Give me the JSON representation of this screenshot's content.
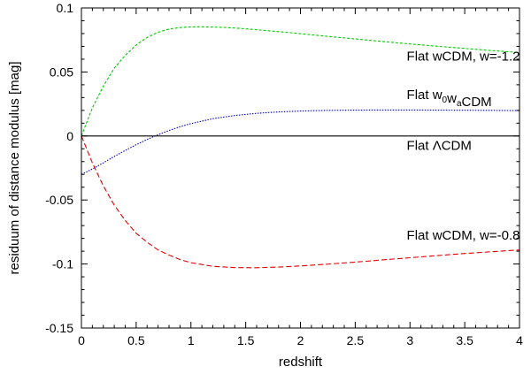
{
  "chart_data": {
    "type": "line",
    "title": "",
    "xlabel": "redshift",
    "ylabel": "residuum of distance modulus [mag]",
    "xlim": [
      0,
      4
    ],
    "ylim": [
      -0.15,
      0.1
    ],
    "xticks": [
      0,
      0.5,
      1,
      1.5,
      2,
      2.5,
      3,
      3.5,
      4
    ],
    "xtick_labels": [
      "0",
      "0.5",
      "1",
      "1.5",
      "2",
      "2.5",
      "3",
      "3.5",
      "4"
    ],
    "yticks": [
      -0.15,
      -0.1,
      -0.05,
      0,
      0.05,
      0.1
    ],
    "ytick_labels": [
      "-0.15",
      "-0.1",
      "-0.05",
      "0",
      "0.05",
      "0.1"
    ],
    "grid": false,
    "series": [
      {
        "name": "Flat wCDM, w=-1.2",
        "color": "#00cc00",
        "style": "short-dash",
        "x": [
          0,
          0.1,
          0.2,
          0.3,
          0.4,
          0.5,
          0.6,
          0.7,
          0.8,
          0.9,
          1.0,
          1.1,
          1.2,
          1.3,
          1.4,
          1.5,
          1.75,
          2.0,
          2.25,
          2.5,
          2.75,
          3.0,
          3.25,
          3.5,
          3.75,
          4.0
        ],
        "values": [
          0.0,
          0.022,
          0.039,
          0.053,
          0.063,
          0.071,
          0.077,
          0.081,
          0.0835,
          0.0847,
          0.0852,
          0.0853,
          0.0851,
          0.0848,
          0.0843,
          0.0837,
          0.0819,
          0.0799,
          0.0778,
          0.0758,
          0.0738,
          0.0719,
          0.0701,
          0.0684,
          0.0667,
          0.0652
        ]
      },
      {
        "name": "Flat w0waCDM",
        "color": "#0000cc",
        "style": "dotted",
        "x": [
          0,
          0.1,
          0.2,
          0.3,
          0.4,
          0.5,
          0.6,
          0.7,
          0.8,
          0.9,
          1.0,
          1.2,
          1.4,
          1.6,
          1.8,
          2.0,
          2.25,
          2.5,
          2.75,
          3.0,
          3.25,
          3.5,
          3.75,
          4.0
        ],
        "values": [
          -0.03,
          -0.0258,
          -0.021,
          -0.016,
          -0.0113,
          -0.0068,
          -0.0027,
          0.001,
          0.0043,
          0.0072,
          0.0097,
          0.0135,
          0.016,
          0.0177,
          0.0188,
          0.0195,
          0.02,
          0.0202,
          0.0203,
          0.0203,
          0.0202,
          0.0201,
          0.02,
          0.0198
        ]
      },
      {
        "name": "Flat ΛCDM",
        "color": "#000000",
        "style": "solid",
        "x": [
          0,
          4
        ],
        "values": [
          0,
          0
        ]
      },
      {
        "name": "Flat wCDM, w=-0.8",
        "color": "#e00000",
        "style": "long-dash",
        "x": [
          0,
          0.1,
          0.2,
          0.3,
          0.4,
          0.5,
          0.6,
          0.7,
          0.8,
          0.9,
          1.0,
          1.2,
          1.4,
          1.6,
          1.8,
          2.0,
          2.25,
          2.5,
          2.75,
          3.0,
          3.25,
          3.5,
          3.75,
          4.0
        ],
        "values": [
          0.0,
          -0.021,
          -0.039,
          -0.054,
          -0.066,
          -0.076,
          -0.083,
          -0.089,
          -0.093,
          -0.0965,
          -0.099,
          -0.1018,
          -0.1028,
          -0.1029,
          -0.1024,
          -0.1015,
          -0.1001,
          -0.0985,
          -0.0968,
          -0.0951,
          -0.0934,
          -0.0918,
          -0.0904,
          -0.089
        ]
      }
    ],
    "annotations": [
      {
        "name": "annotation-wcdm-w-1-2",
        "x": 2.97,
        "y": 0.059,
        "parts": [
          {
            "text": "Flat wCDM, w=-1.2"
          }
        ]
      },
      {
        "name": "annotation-w0wacdm",
        "x": 2.97,
        "y": 0.029,
        "parts": [
          {
            "text": "Flat w"
          },
          {
            "text": "0",
            "sub": true
          },
          {
            "text": "w"
          },
          {
            "text": "a",
            "sub": true
          },
          {
            "text": "CDM"
          }
        ]
      },
      {
        "name": "annotation-lcdm",
        "x": 2.97,
        "y": -0.011,
        "parts": [
          {
            "text": "Flat ΛCDM"
          }
        ]
      },
      {
        "name": "annotation-wcdm-w-0-8",
        "x": 2.97,
        "y": -0.081,
        "parts": [
          {
            "text": "Flat wCDM, w=-0.8"
          }
        ]
      }
    ]
  }
}
